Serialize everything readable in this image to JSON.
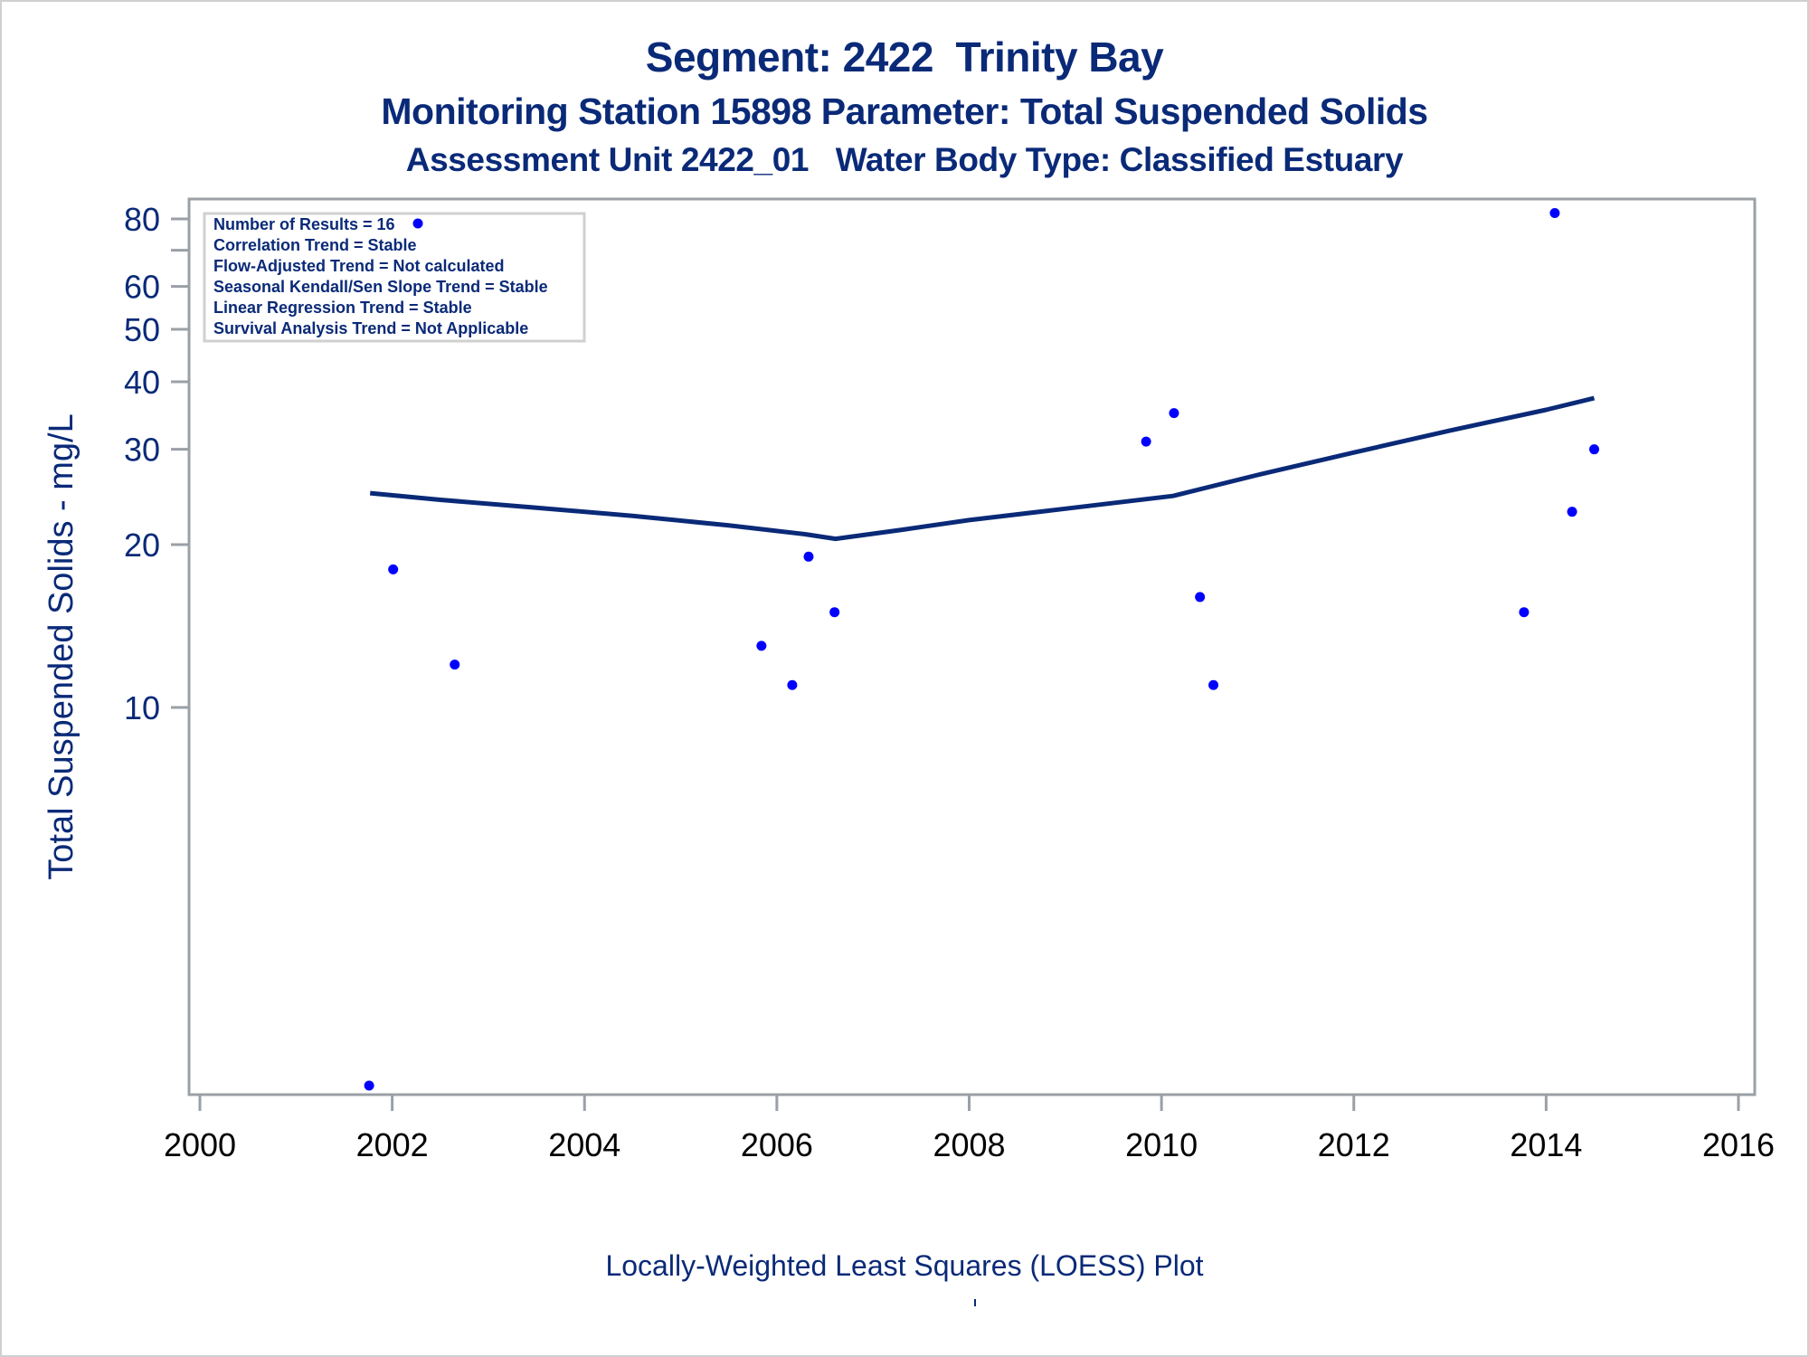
{
  "titles": {
    "line1": "Segment: 2422  Trinity Bay",
    "line2": "Monitoring Station 15898 Parameter: Total Suspended Solids",
    "line3": "Assessment Unit 2422_01   Water Body Type: Classified Estuary"
  },
  "footnote": "Locally-Weighted Least Squares (LOESS) Plot",
  "colors": {
    "title": "#0a2a78",
    "points": "#0000ff",
    "loess": "#0a2a78",
    "axis": "#9aa0a6",
    "tick_label_y": "#0a2a78",
    "tick_label_x": "#000000"
  },
  "chart_data": {
    "type": "scatter",
    "title": "Segment: 2422  Trinity Bay",
    "xlabel": "",
    "ylabel": "Total Suspended Solids - mg/L",
    "x_scale": "linear",
    "y_scale": "log",
    "xlim": [
      2000,
      2016
    ],
    "ylim": [
      1.94,
      90
    ],
    "x_ticks": [
      2000,
      2002,
      2004,
      2006,
      2008,
      2010,
      2012,
      2014,
      2016
    ],
    "y_ticks": [
      {
        "value": 10,
        "label": "10"
      },
      {
        "value": 20,
        "label": "20"
      },
      {
        "value": 30,
        "label": "30"
      },
      {
        "value": 40,
        "label": "40"
      },
      {
        "value": 50,
        "label": "50"
      },
      {
        "value": 60,
        "label": "60"
      },
      {
        "value": 70,
        "label": ""
      },
      {
        "value": 80,
        "label": "80"
      }
    ],
    "grid": false,
    "series": [
      {
        "name": "Results",
        "type": "scatter",
        "points": [
          {
            "x": 2001.76,
            "y": 2
          },
          {
            "x": 2002.01,
            "y": 18
          },
          {
            "x": 2002.27,
            "y": 79
          },
          {
            "x": 2002.65,
            "y": 12
          },
          {
            "x": 2005.84,
            "y": 13
          },
          {
            "x": 2006.16,
            "y": 11
          },
          {
            "x": 2006.33,
            "y": 19
          },
          {
            "x": 2006.6,
            "y": 15
          },
          {
            "x": 2009.84,
            "y": 31
          },
          {
            "x": 2010.13,
            "y": 35
          },
          {
            "x": 2010.4,
            "y": 16
          },
          {
            "x": 2010.54,
            "y": 11
          },
          {
            "x": 2013.77,
            "y": 15
          },
          {
            "x": 2014.09,
            "y": 82
          },
          {
            "x": 2014.27,
            "y": 23
          },
          {
            "x": 2014.5,
            "y": 30
          }
        ]
      },
      {
        "name": "LOESS",
        "type": "line",
        "points": [
          {
            "x": 2001.77,
            "y": 24.9
          },
          {
            "x": 2002.5,
            "y": 24.2
          },
          {
            "x": 2003.5,
            "y": 23.4
          },
          {
            "x": 2004.5,
            "y": 22.6
          },
          {
            "x": 2005.5,
            "y": 21.7
          },
          {
            "x": 2006.3,
            "y": 20.9
          },
          {
            "x": 2006.61,
            "y": 20.5
          },
          {
            "x": 2007.3,
            "y": 21.3
          },
          {
            "x": 2008.0,
            "y": 22.2
          },
          {
            "x": 2009.0,
            "y": 23.3
          },
          {
            "x": 2010.12,
            "y": 24.6
          },
          {
            "x": 2011.0,
            "y": 26.9
          },
          {
            "x": 2012.0,
            "y": 29.6
          },
          {
            "x": 2013.0,
            "y": 32.5
          },
          {
            "x": 2014.0,
            "y": 35.5
          },
          {
            "x": 2014.5,
            "y": 37.3
          }
        ]
      }
    ],
    "legend": {
      "placement": "top-left",
      "entries": [
        "Number of Results = 16",
        "Correlation Trend = Stable",
        "Flow-Adjusted Trend = Not calculated",
        "Seasonal Kendall/Sen Slope Trend = Stable",
        "Linear Regression Trend = Stable",
        "Survival Analysis Trend = Not Applicable"
      ]
    }
  }
}
